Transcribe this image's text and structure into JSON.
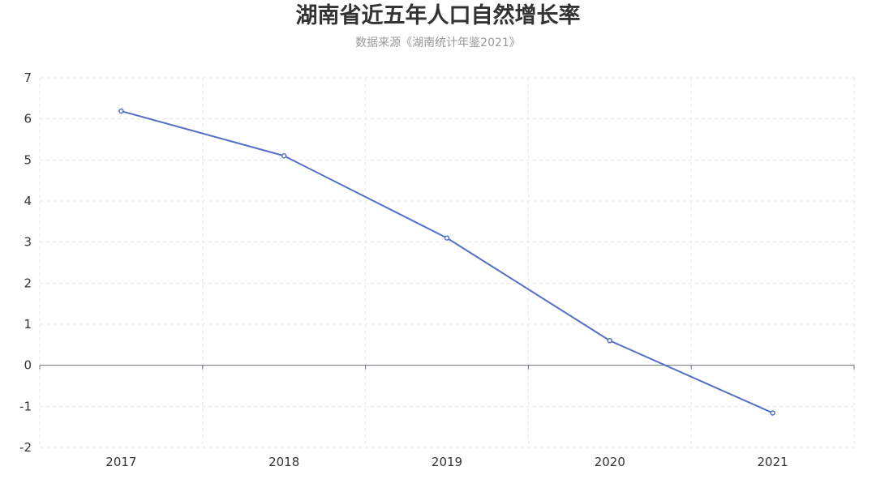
{
  "header": {
    "title": "湖南省近五年人口自然增长率",
    "subtitle": "数据来源《湖南统计年鉴2021》"
  },
  "colors": {
    "series": "#5470c6",
    "grid": "#e6e6e6",
    "axis": "#6e7079"
  },
  "chart_data": {
    "type": "line",
    "title": "湖南省近五年人口自然增长率",
    "subtitle": "数据来源《湖南统计年鉴2021》",
    "categories": [
      "2017",
      "2018",
      "2019",
      "2020",
      "2021"
    ],
    "series": [
      {
        "values": [
          6.19,
          5.1,
          3.1,
          0.6,
          -1.16
        ]
      }
    ],
    "ylim": [
      -2,
      7
    ],
    "yticks": [
      -2,
      -1,
      0,
      1,
      2,
      3,
      4,
      5,
      6,
      7
    ],
    "grid": true,
    "xlabel": "",
    "ylabel": ""
  }
}
